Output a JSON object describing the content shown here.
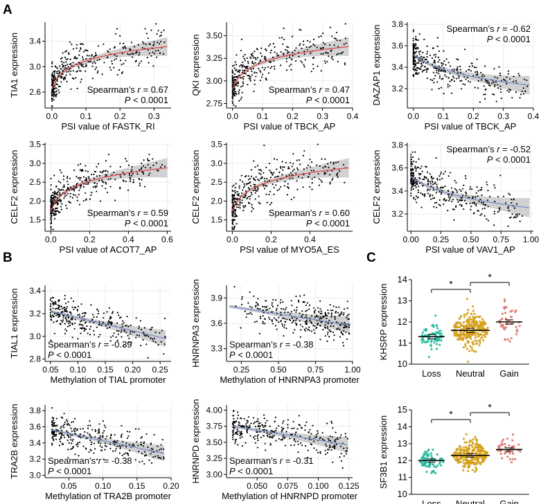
{
  "panel_letters": [
    "A",
    "B",
    "C"
  ],
  "colors": {
    "pos_fit": "#d9534f",
    "neg_fit": "#7f93c9",
    "band": "#bdbdbd",
    "loss": "#1fb89a",
    "neutral": "#d4a017",
    "gain": "#d9756b"
  },
  "chart_data": [
    {
      "id": "a1",
      "type": "scatter",
      "xlabel": "PSI value of FASTK_RI",
      "ylabel": "TIA1 expression",
      "xlim": [
        -0.02,
        0.35
      ],
      "ylim": [
        2.35,
        3.7
      ],
      "xticks": [
        0.0,
        0.1,
        0.2,
        0.3
      ],
      "xtick_labels": [
        "0.0",
        "0.1",
        "0.2",
        "0.3"
      ],
      "yticks": [
        2.6,
        3.0,
        3.4
      ],
      "ytick_labels": [
        "2.6",
        "3.0",
        "3.4"
      ],
      "fit": "log",
      "direction": "positive",
      "n_points": 360,
      "stat_r": "0.67",
      "stat_p": "< 0.0001",
      "stat_pos": "bottom-right",
      "stat_label_prefix": "Spearman’s ",
      "stat_label_r": "r",
      "stat_label_eq": " = ",
      "stat_label_P": "P"
    },
    {
      "id": "a2",
      "type": "scatter",
      "xlabel": "PSI value of TBCK_AP",
      "ylabel": "QKI expression",
      "xlim": [
        -0.02,
        0.4
      ],
      "ylim": [
        2.7,
        3.65
      ],
      "xticks": [
        0.0,
        0.1,
        0.2,
        0.3,
        0.4
      ],
      "xtick_labels": [
        "0.0",
        "0.1",
        "0.2",
        "0.3",
        "0.4"
      ],
      "yticks": [
        2.75,
        3.0,
        3.25,
        3.5
      ],
      "ytick_labels": [
        "2.75",
        "3.00",
        "3.25",
        "3.50"
      ],
      "fit": "log",
      "direction": "positive",
      "n_points": 360,
      "stat_r": "0.47",
      "stat_p": "< 0.0001",
      "stat_pos": "bottom-right"
    },
    {
      "id": "a3",
      "type": "scatter",
      "xlabel": "PSI value of TBCK_AP",
      "ylabel": "DAZAP1 expression",
      "xlim": [
        -0.02,
        0.4
      ],
      "ylim": [
        3.02,
        3.82
      ],
      "xticks": [
        0.0,
        0.1,
        0.2,
        0.3,
        0.4
      ],
      "xtick_labels": [
        "0.0",
        "0.1",
        "0.2",
        "0.3",
        "0.4"
      ],
      "yticks": [
        3.2,
        3.4,
        3.6,
        3.8
      ],
      "ytick_labels": [
        "3.2",
        "3.4",
        "3.6",
        "3.8"
      ],
      "fit": "log",
      "direction": "negative",
      "n_points": 360,
      "stat_r": "-0.62",
      "stat_p": "< 0.0001",
      "stat_pos": "top-right"
    },
    {
      "id": "a4",
      "type": "scatter",
      "xlabel": "PSI value of ACOT7_AP",
      "ylabel": "CELF2 expression",
      "xlim": [
        -0.03,
        0.62
      ],
      "ylim": [
        1.2,
        3.55
      ],
      "xticks": [
        0.0,
        0.2,
        0.4,
        0.6
      ],
      "xtick_labels": [
        "0.0",
        "0.2",
        "0.4",
        "0.6"
      ],
      "yticks": [
        1.5,
        2.0,
        2.5,
        3.0,
        3.5
      ],
      "ytick_labels": [
        "1.5",
        "2.0",
        "2.5",
        "3.0",
        "3.5"
      ],
      "fit": "log",
      "direction": "positive",
      "n_points": 360,
      "stat_r": "0.59",
      "stat_p": "< 0.0001",
      "stat_pos": "bottom-right"
    },
    {
      "id": "a5",
      "type": "scatter",
      "xlabel": "PSI value of MYO5A_ES",
      "ylabel": "CELF2 expression",
      "xlim": [
        -0.03,
        0.62
      ],
      "ylim": [
        1.2,
        3.55
      ],
      "xticks": [
        0.0,
        0.2,
        0.4
      ],
      "xtick_labels": [
        "0.0",
        "0.2",
        "0.4"
      ],
      "yticks": [
        1.5,
        2.0,
        2.5,
        3.0,
        3.5
      ],
      "ytick_labels": [
        "1.5",
        "2.0",
        "2.5",
        "3.0",
        "3.5"
      ],
      "fit": "log",
      "direction": "positive",
      "n_points": 360,
      "stat_r": "0.60",
      "stat_p": "< 0.0001",
      "stat_pos": "bottom-right"
    },
    {
      "id": "a6",
      "type": "scatter",
      "xlabel": "PSI value of VAV1_AP",
      "ylabel": "CELF2 expression",
      "xlim": [
        -0.03,
        1.02
      ],
      "ylim": [
        3.05,
        3.82
      ],
      "xticks": [
        0.0,
        0.25,
        0.5,
        0.75,
        1.0
      ],
      "xtick_labels": [
        "0.00",
        "0.25",
        "0.50",
        "0.75",
        "1.00"
      ],
      "yticks": [
        3.2,
        3.4,
        3.6,
        3.8
      ],
      "ytick_labels": [
        "3.2",
        "3.4",
        "3.6",
        "3.8"
      ],
      "fit": "log",
      "direction": "negative",
      "n_points": 360,
      "stat_r": "-0.52",
      "stat_p": "< 0.0001",
      "stat_pos": "top-right"
    },
    {
      "id": "b1",
      "type": "scatter",
      "xlabel": "Methylation of TIAL promoter",
      "ylabel": "TIAL1 expression",
      "xlim": [
        0.04,
        0.27
      ],
      "ylim": [
        2.78,
        3.45
      ],
      "xticks": [
        0.05,
        0.1,
        0.15,
        0.2,
        0.25
      ],
      "xtick_labels": [
        "0.05",
        "0.10",
        "0.15",
        "0.20",
        "0.25"
      ],
      "yticks": [
        2.8,
        3.0,
        3.2,
        3.4
      ],
      "ytick_labels": [
        "2.8",
        "3.0",
        "3.2",
        "3.4"
      ],
      "fit": "linear",
      "direction": "negative",
      "n_points": 300,
      "line_from": [
        0.05,
        3.22
      ],
      "line_to": [
        0.26,
        2.98
      ],
      "stat_r": "-0.39",
      "stat_p": "< 0.0001",
      "stat_pos": "bottom-left"
    },
    {
      "id": "b2",
      "type": "scatter",
      "xlabel": "Methylation of HNRNPA3 promoter",
      "ylabel": "HNRNPA3 expression",
      "xlim": [
        0.15,
        1.0
      ],
      "ylim": [
        3.15,
        4.05
      ],
      "xticks": [
        0.25,
        0.5,
        0.75,
        1.0
      ],
      "xtick_labels": [
        "0.25",
        "0.50",
        "0.75",
        "1.00"
      ],
      "yticks": [
        3.3,
        3.6,
        3.9
      ],
      "ytick_labels": [
        "3.3",
        "3.6",
        "3.9"
      ],
      "fit": "linear",
      "direction": "negative",
      "n_points": 320,
      "line_from": [
        0.17,
        3.8
      ],
      "line_to": [
        0.98,
        3.58
      ],
      "stat_r": "-0.38",
      "stat_p": "< 0.0001",
      "stat_pos": "bottom-left"
    },
    {
      "id": "b3",
      "type": "scatter",
      "xlabel": "Methylation of TRA2B promoter",
      "ylabel": "TRA2B expression",
      "xlim": [
        0.015,
        0.2
      ],
      "ylim": [
        2.97,
        3.87
      ],
      "xticks": [
        0.05,
        0.1,
        0.15,
        0.2
      ],
      "xtick_labels": [
        "0.05",
        "0.10",
        "0.15",
        "0.20"
      ],
      "yticks": [
        3.0,
        3.2,
        3.4,
        3.6,
        3.8
      ],
      "ytick_labels": [
        "3.0",
        "3.2",
        "3.4",
        "3.6",
        "3.8"
      ],
      "fit": "linear",
      "direction": "negative",
      "n_points": 300,
      "line_from": [
        0.025,
        3.56
      ],
      "line_to": [
        0.19,
        3.27
      ],
      "stat_r": "-0.38",
      "stat_p": "< 0.0001",
      "stat_pos": "bottom-left"
    },
    {
      "id": "b4",
      "type": "scatter",
      "xlabel": "Methylation of HNRNPD promoter",
      "ylabel": "HNRNPD expression",
      "xlim": [
        0.025,
        0.128
      ],
      "ylim": [
        2.95,
        4.08
      ],
      "xticks": [
        0.05,
        0.075,
        0.1,
        0.125
      ],
      "xtick_labels": [
        "0.050",
        "0.075",
        "0.100",
        "0.125"
      ],
      "yticks": [
        3.0,
        3.25,
        3.5,
        3.75,
        4.0
      ],
      "ytick_labels": [
        "3.00",
        "3.25",
        "3.50",
        "3.75",
        "4.00"
      ],
      "fit": "linear",
      "direction": "negative",
      "n_points": 300,
      "line_from": [
        0.03,
        3.75
      ],
      "line_to": [
        0.124,
        3.46
      ],
      "stat_r": "-0.31",
      "stat_p": "< 0.0001",
      "stat_pos": "bottom-left"
    },
    {
      "id": "c1",
      "type": "strip",
      "ylabel": "KHSRP expression",
      "categories": [
        "Loss",
        "Neutral",
        "Gain"
      ],
      "ylim": [
        10,
        14
      ],
      "yticks": [
        10,
        11,
        12,
        13,
        14
      ],
      "ytick_labels": [
        "10",
        "11",
        "12",
        "13",
        "14"
      ],
      "means": [
        11.3,
        11.6,
        12.0
      ],
      "counts": [
        70,
        260,
        45
      ],
      "spread": [
        0.35,
        0.45,
        0.45
      ],
      "significance": [
        {
          "from": "Loss",
          "to": "Neutral",
          "label": "*"
        },
        {
          "from": "Neutral",
          "to": "Gain",
          "label": "*"
        }
      ]
    },
    {
      "id": "c2",
      "type": "strip",
      "ylabel": "SF3B1 expression",
      "categories": [
        "Loss",
        "Neutral",
        "Gain"
      ],
      "ylim": [
        10,
        15
      ],
      "yticks": [
        10,
        11,
        12,
        13,
        14,
        15
      ],
      "ytick_labels": [
        "10",
        "11",
        "12",
        "13",
        "14",
        "15"
      ],
      "means": [
        12.0,
        12.3,
        12.65
      ],
      "counts": [
        70,
        260,
        45
      ],
      "spread": [
        0.35,
        0.4,
        0.4
      ],
      "significance": [
        {
          "from": "Loss",
          "to": "Neutral",
          "label": "*"
        },
        {
          "from": "Neutral",
          "to": "Gain",
          "label": "*"
        }
      ]
    }
  ],
  "stat_labels": {
    "prefix": "Spearman’s ",
    "r": "r",
    "eq": " = ",
    "P": "P"
  }
}
